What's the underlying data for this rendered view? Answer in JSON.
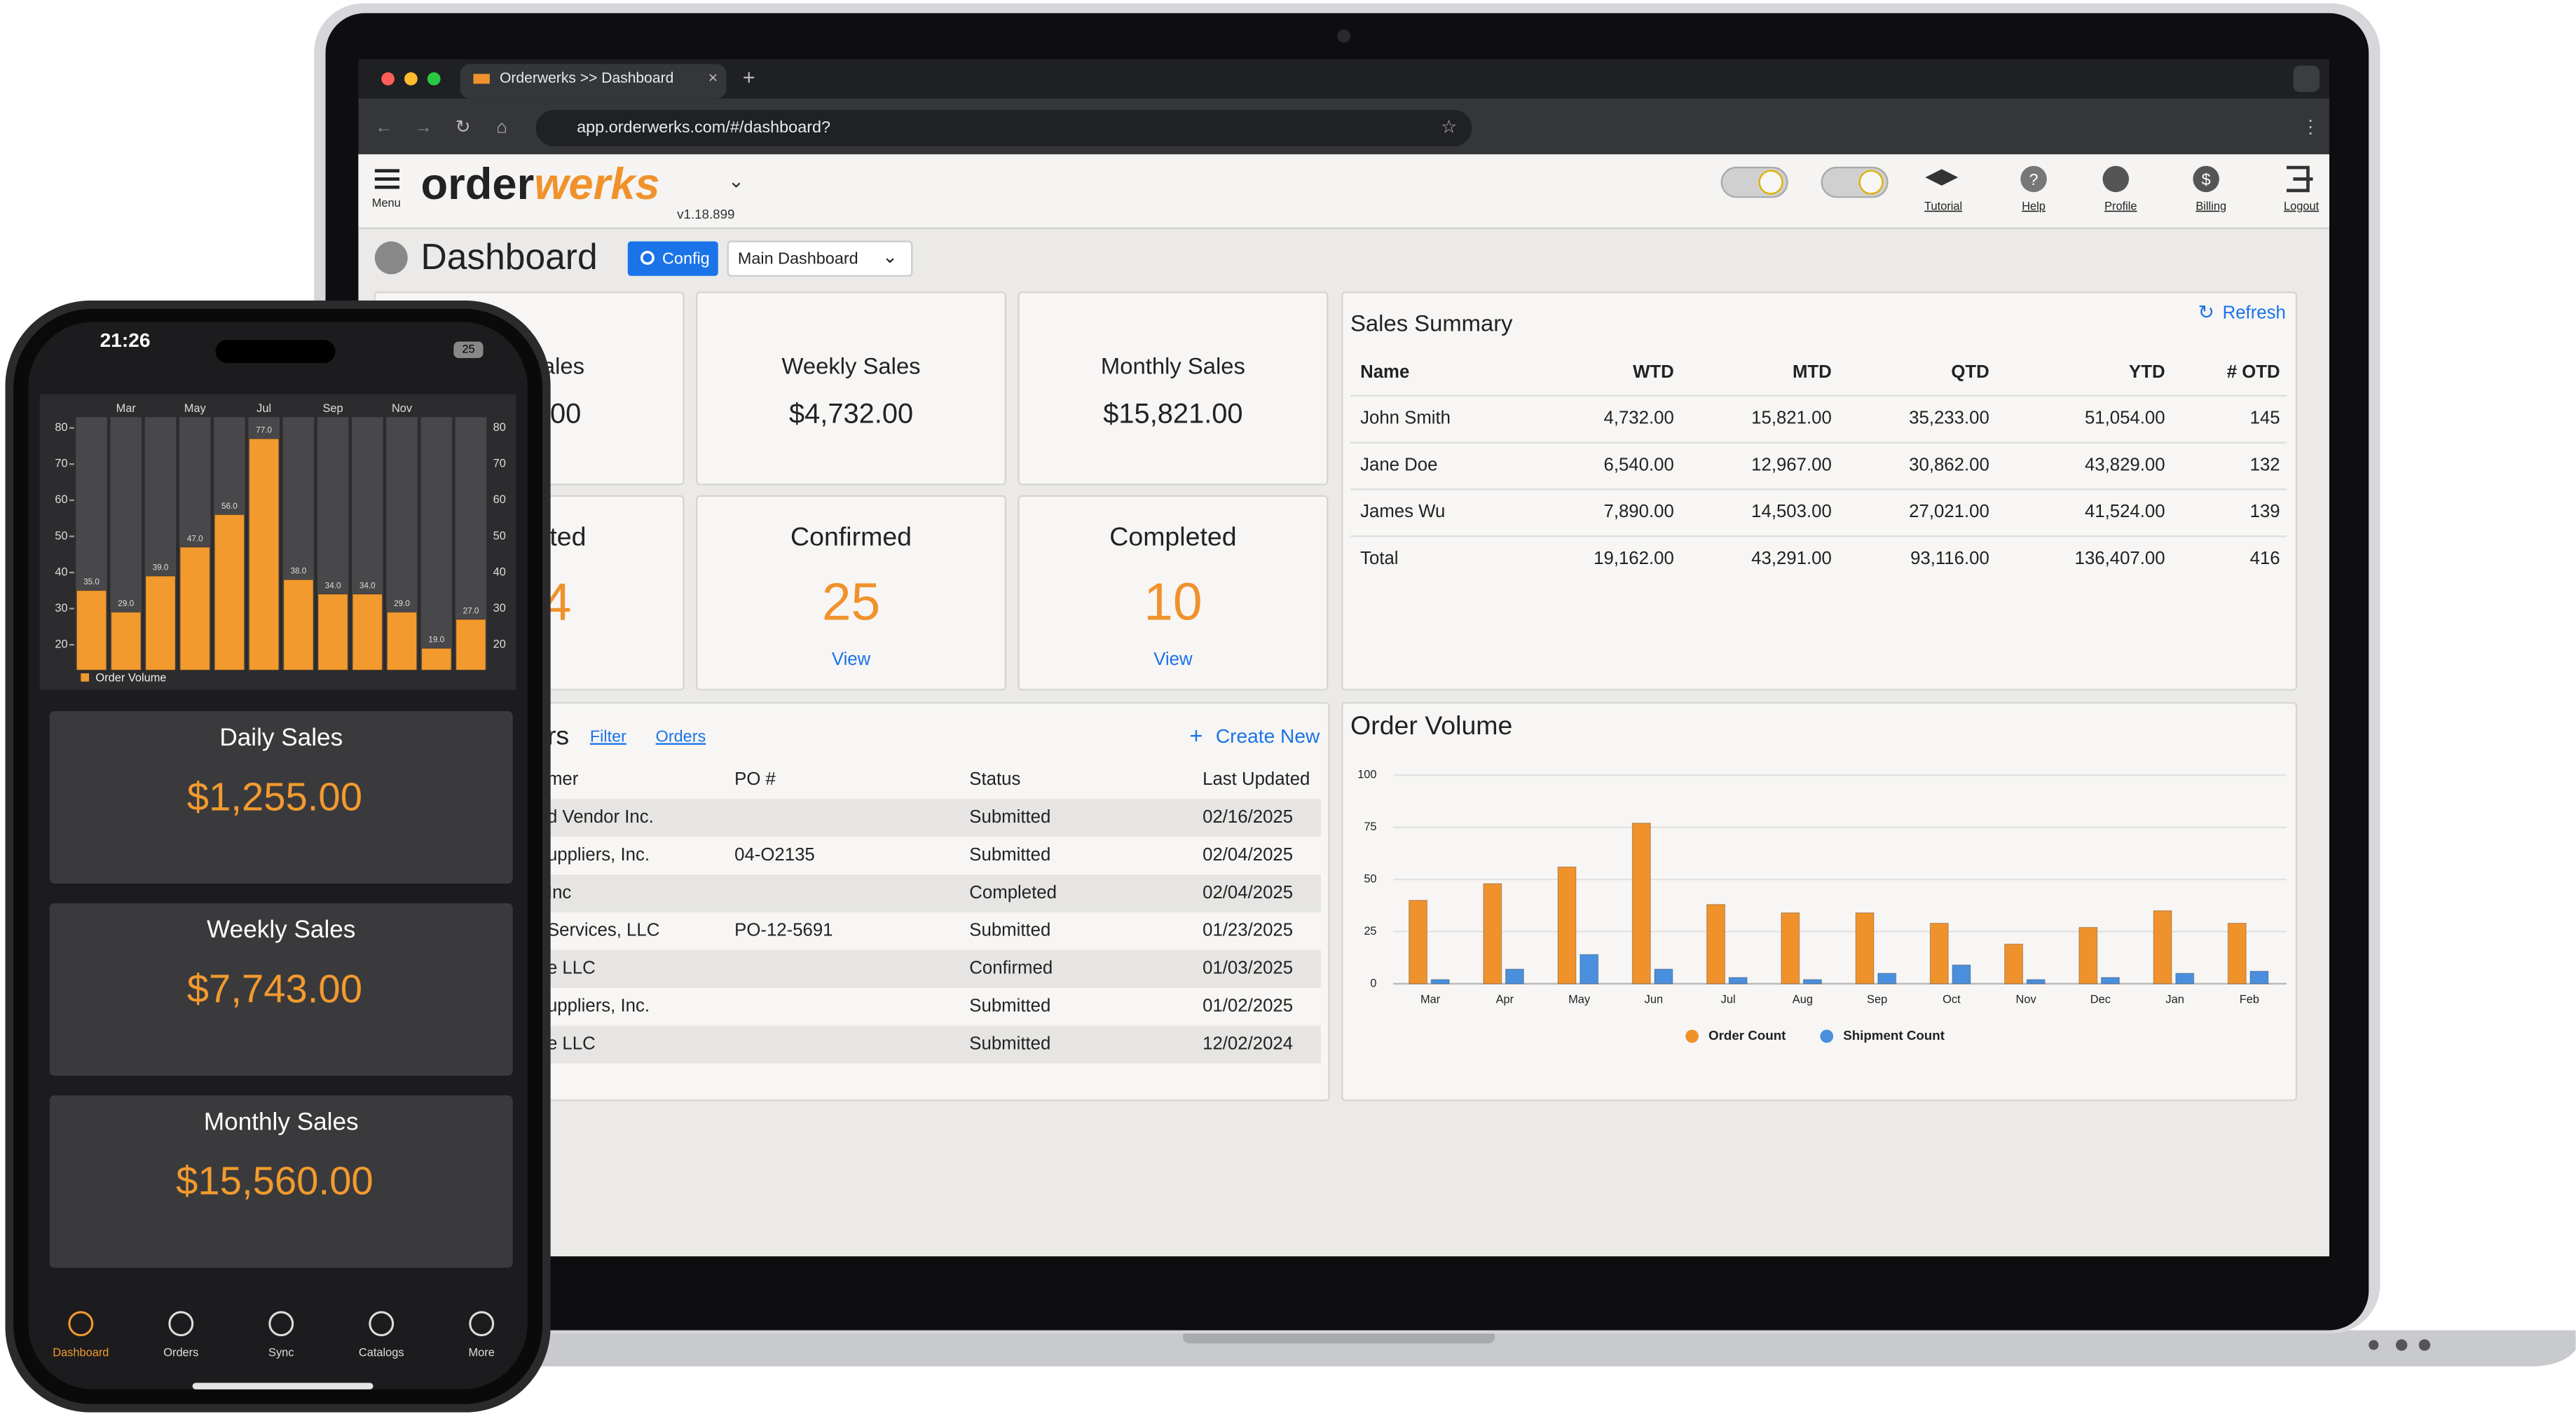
{
  "browser": {
    "tab_title": "Orderwerks >> Dashboard",
    "url": "app.orderwerks.com/#/dashboard?"
  },
  "header": {
    "menu": "Menu",
    "logo_left": "order",
    "logo_right": "werks",
    "version": "v1.18.899",
    "nav": [
      "Tutorial",
      "Help",
      "Profile",
      "Billing",
      "Logout"
    ]
  },
  "toolbar": {
    "title": "Dashboard",
    "config": "Config",
    "dashboard_select": "Main Dashboard"
  },
  "cards": [
    {
      "title": "ales",
      "value": ".00"
    },
    {
      "title": "Weekly Sales",
      "value": "$4,732.00"
    },
    {
      "title": "Monthly Sales",
      "value": "$15,821.00"
    },
    {
      "title": "tted",
      "value": "4"
    },
    {
      "title": "Confirmed",
      "value": "25",
      "link": "View"
    },
    {
      "title": "Completed",
      "value": "10",
      "link": "View"
    }
  ],
  "sales_summary": {
    "title": "Sales Summary",
    "refresh": "Refresh",
    "columns": [
      "Name",
      "WTD",
      "MTD",
      "QTD",
      "YTD",
      "# OTD"
    ],
    "rows": [
      [
        "John Smith",
        "4,732.00",
        "15,821.00",
        "35,233.00",
        "51,054.00",
        "145"
      ],
      [
        "Jane Doe",
        "6,540.00",
        "12,967.00",
        "30,862.00",
        "43,829.00",
        "132"
      ],
      [
        "James Wu",
        "7,890.00",
        "14,503.00",
        "27,021.00",
        "41,524.00",
        "139"
      ],
      [
        "Total",
        "19,162.00",
        "43,291.00",
        "93,116.00",
        "136,407.00",
        "416"
      ]
    ]
  },
  "orders": {
    "title": "rs",
    "filter": "Filter",
    "orders_link": "Orders",
    "create": "Create New",
    "columns": [
      "mer",
      "PO #",
      "Status",
      "Last Updated"
    ],
    "rows": [
      [
        "d Vendor Inc.",
        null,
        "Submitted",
        "02/16/2025"
      ],
      [
        "uppliers, Inc.",
        "04-O2135",
        "Submitted",
        "02/04/2025"
      ],
      [
        "Inc",
        null,
        "Completed",
        "02/04/2025"
      ],
      [
        "Services, LLC",
        "PO-12-5691",
        "Submitted",
        "01/23/2025"
      ],
      [
        "e LLC",
        null,
        "Confirmed",
        "01/03/2025"
      ],
      [
        "uppliers, Inc.",
        null,
        "Submitted",
        "01/02/2025"
      ],
      [
        "e LLC",
        null,
        "Submitted",
        "12/02/2024"
      ]
    ]
  },
  "chart_data": [
    {
      "type": "bar",
      "title": "Order Volume",
      "categories": [
        "Mar",
        "Apr",
        "May",
        "Jun",
        "Jul",
        "Aug",
        "Sep",
        "Oct",
        "Nov",
        "Dec",
        "Jan",
        "Feb"
      ],
      "series": [
        {
          "name": "Order Count",
          "color": "#f0922c",
          "values": [
            40,
            48,
            56,
            77,
            38,
            34,
            34,
            29,
            19,
            27,
            35,
            29
          ]
        },
        {
          "name": "Shipment Count",
          "color": "#4a8fdd",
          "values": [
            2,
            7,
            14,
            7,
            3,
            2,
            5,
            9,
            2,
            3,
            5,
            6
          ]
        }
      ],
      "ylim": [
        0,
        100
      ],
      "yticks": [
        0,
        25,
        50,
        75,
        100
      ],
      "grid": true
    },
    {
      "type": "bar",
      "categories": [
        null,
        "Mar",
        null,
        "May",
        null,
        "Jul",
        null,
        "Sep",
        null,
        "Nov",
        null,
        null
      ],
      "series": [
        {
          "name": "Order Volume",
          "color": "#f39a2e",
          "values": [
            35,
            29,
            39,
            47,
            56,
            77,
            38,
            34,
            34,
            29,
            19,
            27
          ],
          "value_labels": [
            "35.0",
            "29.0",
            "39.0",
            "47.0",
            "56.0",
            "77.0",
            "38.0",
            "34.0",
            "34.0",
            "29.0",
            "19.0",
            "27.0"
          ]
        }
      ],
      "ylim": [
        13,
        83
      ],
      "yticks": [
        20,
        30,
        40,
        50,
        60,
        70,
        80
      ]
    }
  ],
  "phone": {
    "time": "21:26",
    "battery": "25",
    "cards": [
      {
        "title": "Daily Sales",
        "value": "$1,255.00"
      },
      {
        "title": "Weekly Sales",
        "value": "$7,743.00"
      },
      {
        "title": "Monthly Sales",
        "value": "$15,560.00"
      }
    ],
    "tabs": [
      "Dashboard",
      "Orders",
      "Sync",
      "Catalogs",
      "More"
    ]
  }
}
